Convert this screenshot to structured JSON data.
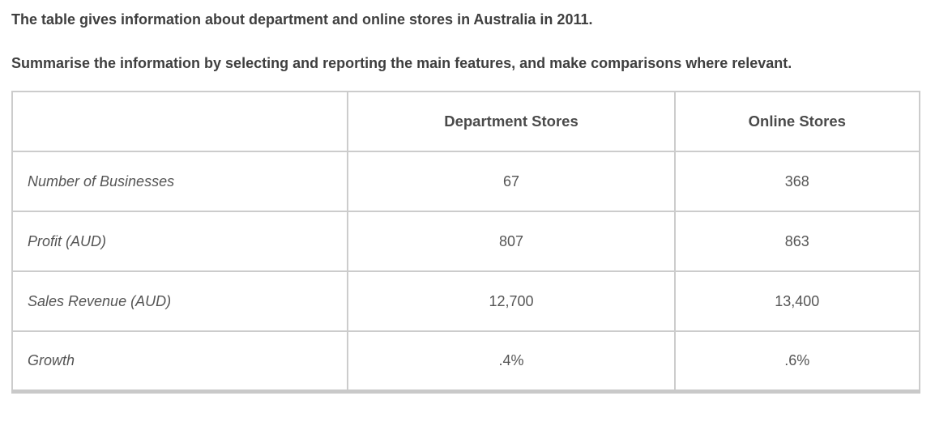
{
  "colors": {
    "page-bg": "#ffffff",
    "text-primary": "#3f3f3f",
    "text-header": "#4a4a4a",
    "text-secondary": "#555555",
    "table-border": "#cccccc",
    "table-border-bottom": "#c9c9c9"
  },
  "intro": {
    "line1": "The table gives information about department and online stores in Australia in 2011.",
    "line2": "Summarise the information by selecting and reporting the main features, and make comparisons where relevant."
  },
  "table": {
    "headers": [
      "",
      "Department Stores",
      "Online Stores"
    ],
    "rows": [
      [
        "Number of Businesses",
        "67",
        "368"
      ],
      [
        "Profit (AUD)",
        "807",
        "863"
      ],
      [
        "Sales Revenue (AUD)",
        "12,700",
        "13,400"
      ],
      [
        "Growth",
        ".4%",
        ".6%"
      ]
    ]
  }
}
